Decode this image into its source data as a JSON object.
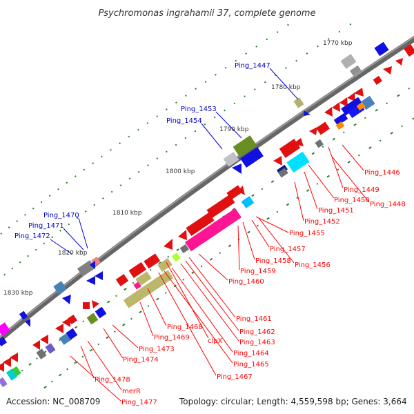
{
  "title": "Psychromonas ingrahamii 37, complete genome",
  "footer": {
    "accession": "Accession: NC_008709",
    "topology": "Topology: circular; Length: 4,559,598 bp; Genes: 3,664"
  },
  "ticks": [
    "1770 kbp",
    "1780 kbp",
    "1790 kbp",
    "1800 kbp",
    "1810 kbp",
    "1820 kbp",
    "1830 kbp"
  ],
  "labels_blue": [
    "Ping_1447",
    "Ping_1453",
    "Ping_1454",
    "Ping_1470",
    "Ping_1471",
    "Ping_1472"
  ],
  "labels_red": [
    "Ping_1446",
    "Ping_1449",
    "Ping_1448",
    "Ping_1450",
    "Ping_1451",
    "Ping_1452",
    "Ping_1455",
    "Ping_1457",
    "Ping_1458",
    "Ping_1456",
    "Ping_1459",
    "Ping_1460",
    "Ping_1461",
    "Ping_1462",
    "Ping_1463",
    "Ping_1464",
    "Ping_1465",
    "Ping_1467",
    "clpX",
    "Ping_1468",
    "Ping_1469",
    "Ping_1473",
    "Ping_1474",
    "Ping_1478",
    "merR",
    "Ping_1477"
  ],
  "colors": {
    "backbone": "#7f7f7f",
    "forward_label": "#0000cc",
    "reverse_label": "#ff0000",
    "gc_dots": "#2a7a2a"
  }
}
